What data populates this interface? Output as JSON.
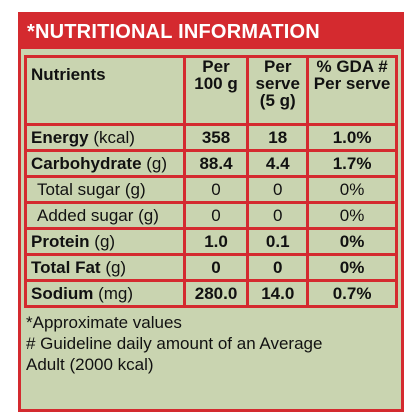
{
  "title": "*NUTRITIONAL INFORMATION",
  "columns": {
    "nutrients": "Nutrients",
    "per100_l1": "Per",
    "per100_l2": "100 g",
    "serve_l1": "Per",
    "serve_l2": "serve",
    "serve_l3": "(5 g)",
    "gda_l1": "% GDA #",
    "gda_l2": "Per serve"
  },
  "rows": [
    {
      "name": "Energy",
      "unit": "(kcal)",
      "per100": "358",
      "serve": "18",
      "gda": "1.0%"
    },
    {
      "name": "Carbohydrate",
      "unit": "(g)",
      "per100": "88.4",
      "serve": "4.4",
      "gda": "1.7%"
    },
    {
      "name": "Total sugar (g)",
      "unit": "",
      "per100": "0",
      "serve": "0",
      "gda": "0%"
    },
    {
      "name": "Added sugar (g)",
      "unit": "",
      "per100": "0",
      "serve": "0",
      "gda": "0%"
    },
    {
      "name": "Protein",
      "unit": "(g)",
      "per100": "1.0",
      "serve": "0.1",
      "gda": "0%"
    },
    {
      "name": "Total Fat",
      "unit": "(g)",
      "per100": "0",
      "serve": "0",
      "gda": "0%"
    },
    {
      "name": "Sodium",
      "unit": "(mg)",
      "per100": "280.0",
      "serve": "14.0",
      "gda": "0.7%"
    }
  ],
  "notes": {
    "approx": "*Approximate values",
    "guideline_l1": "# Guideline daily amount of an Average",
    "guideline_l2": "Adult (2000 kcal)"
  }
}
